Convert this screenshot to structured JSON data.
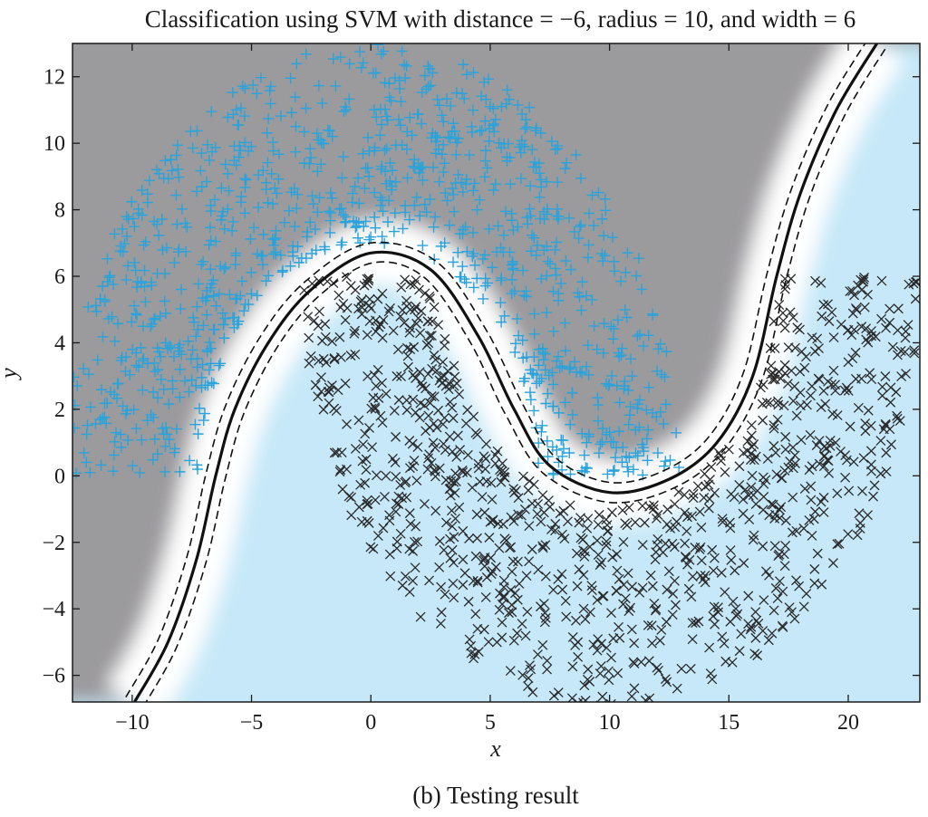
{
  "chart_data": {
    "type": "scatter",
    "title": "Classification using SVM with distance = −6, radius = 10, and width = 6",
    "caption": "(b) Testing result",
    "xlabel": "x",
    "ylabel": "y",
    "xlim": [
      -12.5,
      23
    ],
    "ylim": [
      -6.8,
      13
    ],
    "x_ticks": [
      -10,
      -5,
      0,
      5,
      10,
      15,
      20
    ],
    "y_ticks": [
      -6,
      -4,
      -2,
      0,
      2,
      4,
      6,
      8,
      10,
      12
    ],
    "x_tick_labels": [
      "−10",
      "−5",
      "0",
      "5",
      "10",
      "15",
      "20"
    ],
    "y_tick_labels": [
      "−6",
      "−4",
      "−2",
      "0",
      "2",
      "4",
      "6",
      "8",
      "10",
      "12"
    ],
    "grid": false,
    "background_regions": [
      {
        "class": "upper",
        "color": "#9b9a9d"
      },
      {
        "class": "lower",
        "color": "#c6e8f8"
      },
      {
        "class": "margin",
        "color": "#ffffff"
      }
    ],
    "series": [
      {
        "marker": "+",
        "color": "#29a3dc",
        "shape": "upper half-moon",
        "center": [
          0,
          0
        ],
        "radius": 10,
        "width": 6,
        "n_points": 1000
      },
      {
        "marker": "x",
        "color": "#2a2a2a",
        "shape": "lower half-moon",
        "center": [
          10,
          6
        ],
        "radius": 10,
        "width": 6,
        "n_points": 1000
      }
    ],
    "boundary": {
      "style": "solid black line with dashed margin lines",
      "points": [
        [
          -9.9,
          -6.8
        ],
        [
          -8.5,
          -5.0
        ],
        [
          -7.3,
          -2.5
        ],
        [
          -6.5,
          0.0
        ],
        [
          -5.7,
          2.0
        ],
        [
          -4.3,
          4.0
        ],
        [
          -2.5,
          5.6
        ],
        [
          0.0,
          6.7
        ],
        [
          2.5,
          6.2
        ],
        [
          4.5,
          4.2
        ],
        [
          6.0,
          2.0
        ],
        [
          7.5,
          0.3
        ],
        [
          10.0,
          -0.5
        ],
        [
          12.5,
          -0.1
        ],
        [
          14.5,
          1.0
        ],
        [
          16.0,
          3.0
        ],
        [
          17.0,
          6.0
        ],
        [
          18.0,
          8.5
        ],
        [
          19.5,
          11.0
        ],
        [
          21.2,
          13.0
        ]
      ]
    }
  }
}
